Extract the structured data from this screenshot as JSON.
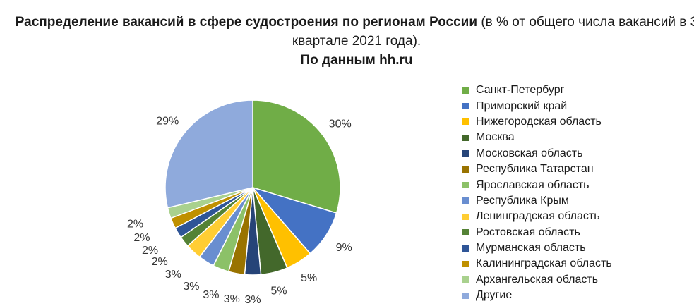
{
  "chart_data": {
    "type": "pie",
    "title_bold_part": "Распределение вакансий в сфере судостроения по регионам России",
    "title_rest": "(в % от общего числа вакансий в 3 квартале 2021 года).",
    "subtitle": "По данным hh.ru",
    "legend_placement": "right",
    "slices": [
      {
        "name": "Санкт-Петербург",
        "value": 30,
        "label": "30%",
        "color": "#70AD47"
      },
      {
        "name": "Приморский край",
        "value": 9,
        "label": "9%",
        "color": "#4472C4"
      },
      {
        "name": "Нижегородская область",
        "value": 5,
        "label": "5%",
        "color": "#FFC000"
      },
      {
        "name": "Москва",
        "value": 5,
        "label": "5%",
        "color": "#43682B"
      },
      {
        "name": "Московская область",
        "value": 3,
        "label": "3%",
        "color": "#264478"
      },
      {
        "name": "Республика Татарстан",
        "value": 3,
        "label": "3%",
        "color": "#997300"
      },
      {
        "name": "Ярославская область",
        "value": 3,
        "label": "3%",
        "color": "#8CC168"
      },
      {
        "name": "Республика Крым",
        "value": 3,
        "label": "3%",
        "color": "#698ED0"
      },
      {
        "name": "Ленинградская область",
        "value": 3,
        "label": "3%",
        "color": "#FFCD33"
      },
      {
        "name": "Ростовская область",
        "value": 2,
        "label": "2%",
        "color": "#548235"
      },
      {
        "name": "Мурманская область",
        "value": 2,
        "label": "2%",
        "color": "#2F5597"
      },
      {
        "name": "Калининградская область",
        "value": 2,
        "label": "2%",
        "color": "#BF9000"
      },
      {
        "name": "Архангельская область",
        "value": 2,
        "label": "2%",
        "color": "#A9D18E"
      },
      {
        "name": "Другие",
        "value": 29,
        "label": "29%",
        "color": "#8FAADC"
      }
    ]
  }
}
